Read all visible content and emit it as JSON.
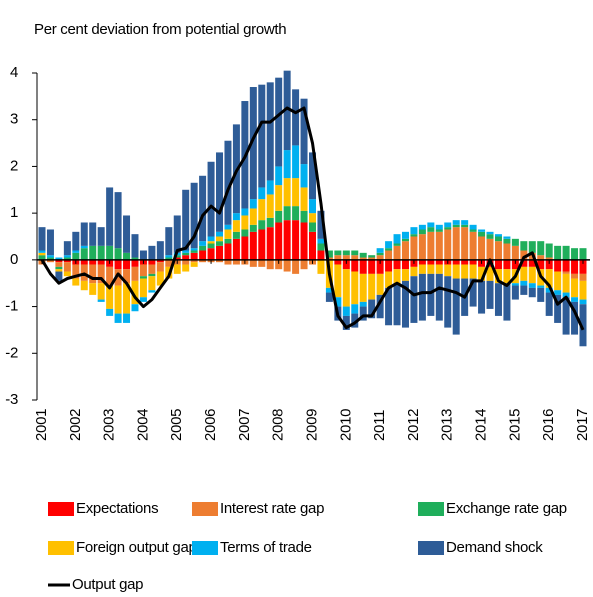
{
  "chart_data": {
    "type": "bar",
    "stacked": true,
    "title": "Per cent deviation from potential growth",
    "categories": [
      "2001",
      null,
      null,
      null,
      "2002",
      null,
      null,
      null,
      "2003",
      null,
      null,
      null,
      "2004",
      null,
      null,
      null,
      "2005",
      null,
      null,
      null,
      "2006",
      null,
      null,
      null,
      "2007",
      null,
      null,
      null,
      "2008",
      null,
      null,
      null,
      "2009",
      null,
      null,
      null,
      "2010",
      null,
      null,
      null,
      "2011",
      null,
      null,
      null,
      "2012",
      null,
      null,
      null,
      "2013",
      null,
      null,
      null,
      "2014",
      null,
      null,
      null,
      "2015",
      null,
      null,
      null,
      "2016",
      null,
      null,
      null,
      "2017"
    ],
    "ylim": [
      -3,
      4
    ],
    "yticks": [
      -3,
      -2,
      -1,
      0,
      1,
      2,
      3,
      4
    ],
    "grid": false,
    "series": [
      {
        "name": "Expectations",
        "color": "#ff0000",
        "values": [
          0,
          0,
          -0.05,
          -0.05,
          -0.1,
          -0.1,
          -0.1,
          -0.1,
          -0.15,
          -0.2,
          -0.2,
          -0.15,
          -0.1,
          -0.1,
          -0.05,
          0,
          0.05,
          0.1,
          0.15,
          0.2,
          0.25,
          0.3,
          0.35,
          0.45,
          0.5,
          0.6,
          0.65,
          0.7,
          0.8,
          0.85,
          0.85,
          0.8,
          0.6,
          0.2,
          0,
          -0.1,
          -0.2,
          -0.25,
          -0.3,
          -0.3,
          -0.3,
          -0.25,
          -0.2,
          -0.2,
          -0.15,
          -0.1,
          -0.1,
          -0.1,
          -0.1,
          -0.1,
          -0.1,
          -0.1,
          -0.15,
          -0.15,
          -0.2,
          -0.2,
          -0.2,
          -0.15,
          -0.15,
          -0.2,
          -0.2,
          -0.25,
          -0.25,
          -0.3,
          -0.3
        ]
      },
      {
        "name": "Interest rate gap",
        "color": "#ed7d31",
        "values": [
          -0.1,
          -0.05,
          -0.1,
          -0.2,
          -0.3,
          -0.35,
          -0.4,
          -0.4,
          -0.4,
          -0.35,
          -0.3,
          -0.3,
          -0.25,
          -0.2,
          -0.2,
          -0.15,
          -0.1,
          -0.1,
          -0.05,
          -0.05,
          -0.05,
          -0.05,
          -0.1,
          -0.1,
          -0.1,
          -0.15,
          -0.15,
          -0.2,
          -0.2,
          -0.25,
          -0.3,
          -0.2,
          -0.1,
          0,
          0.05,
          0.1,
          0.1,
          0.1,
          0.05,
          0.05,
          0.1,
          0.2,
          0.3,
          0.4,
          0.5,
          0.55,
          0.6,
          0.6,
          0.65,
          0.7,
          0.7,
          0.6,
          0.5,
          0.45,
          0.4,
          0.35,
          0.3,
          0.2,
          0.15,
          0.1,
          0.05,
          0,
          -0.05,
          -0.1,
          -0.15
        ]
      },
      {
        "name": "Exchange rate gap",
        "color": "#1fae5b",
        "values": [
          0.1,
          0.05,
          -0.05,
          0.05,
          0.15,
          0.25,
          0.3,
          0.3,
          0.3,
          0.25,
          0.15,
          0.05,
          -0.05,
          -0.05,
          0,
          0.05,
          0.05,
          0.05,
          0.05,
          0.1,
          0.1,
          0.1,
          0.1,
          0.15,
          0.15,
          0.15,
          0.2,
          0.2,
          0.25,
          0.3,
          0.3,
          0.25,
          0.2,
          0.15,
          0.15,
          0.1,
          0.1,
          0.1,
          0.1,
          0.05,
          0.05,
          0.05,
          0.05,
          0.05,
          0.05,
          0.1,
          0.1,
          0.05,
          0.05,
          0.05,
          0.05,
          0.05,
          0.1,
          0.1,
          0.1,
          0.1,
          0.15,
          0.2,
          0.25,
          0.3,
          0.3,
          0.3,
          0.3,
          0.25,
          0.25
        ]
      },
      {
        "name": "Foreign output gap",
        "color": "#ffc000",
        "values": [
          0.05,
          0,
          -0.05,
          -0.1,
          -0.15,
          -0.2,
          -0.25,
          -0.35,
          -0.5,
          -0.6,
          -0.65,
          -0.5,
          -0.4,
          -0.3,
          -0.3,
          -0.25,
          -0.2,
          -0.15,
          -0.1,
          0,
          0.05,
          0.1,
          0.2,
          0.25,
          0.3,
          0.35,
          0.45,
          0.5,
          0.55,
          0.6,
          0.6,
          0.5,
          0.2,
          -0.3,
          -0.6,
          -0.7,
          -0.8,
          -0.7,
          -0.6,
          -0.55,
          -0.45,
          -0.35,
          -0.3,
          -0.25,
          -0.2,
          -0.2,
          -0.2,
          -0.2,
          -0.25,
          -0.3,
          -0.3,
          -0.3,
          -0.3,
          -0.3,
          -0.3,
          -0.3,
          -0.3,
          -0.3,
          -0.35,
          -0.35,
          -0.4,
          -0.4,
          -0.4,
          -0.4,
          -0.4
        ]
      },
      {
        "name": "Terms of trade",
        "color": "#00b0f0",
        "values": [
          0.05,
          0.05,
          0.05,
          0.05,
          0.05,
          0.05,
          0,
          -0.05,
          -0.15,
          -0.2,
          -0.2,
          -0.15,
          -0.1,
          -0.05,
          0,
          0.05,
          0.05,
          0.05,
          0.05,
          0.1,
          0.1,
          0.1,
          0.1,
          0.15,
          0.15,
          0.2,
          0.25,
          0.3,
          0.4,
          0.6,
          0.7,
          0.5,
          0.3,
          0.1,
          -0.1,
          -0.2,
          -0.2,
          -0.2,
          -0.1,
          0,
          0.1,
          0.15,
          0.2,
          0.15,
          0.15,
          0.1,
          0.1,
          0.1,
          0.1,
          0.1,
          0.1,
          0.1,
          0.05,
          0.05,
          0.05,
          0.05,
          -0.05,
          -0.1,
          -0.1,
          -0.05,
          -0.1,
          -0.1,
          -0.1,
          -0.1,
          -0.1
        ]
      },
      {
        "name": "Demand shock",
        "color": "#2e5c97",
        "values": [
          0.5,
          0.55,
          -0.2,
          0.3,
          0.4,
          0.5,
          0.5,
          0.4,
          1.25,
          1.2,
          0.8,
          0.5,
          0.2,
          0.3,
          0.4,
          0.6,
          0.8,
          1.3,
          1.4,
          1.4,
          1.6,
          1.7,
          1.8,
          1.9,
          2.3,
          2.4,
          2.2,
          2.1,
          1.9,
          1.7,
          1.2,
          1.4,
          1.0,
          0.6,
          -0.2,
          -0.3,
          -0.3,
          -0.3,
          -0.3,
          -0.4,
          -0.5,
          -0.8,
          -0.9,
          -1.0,
          -1.0,
          -1.0,
          -0.9,
          -1.0,
          -1.1,
          -1.2,
          -0.8,
          -0.6,
          -0.7,
          -0.6,
          -0.7,
          -0.8,
          -0.3,
          -0.2,
          -0.2,
          -0.3,
          -0.5,
          -0.6,
          -0.8,
          -0.7,
          -0.9
        ]
      },
      {
        "name": "Output gap",
        "type": "line",
        "color": "#000000",
        "values": [
          0,
          -0.3,
          -0.5,
          -0.4,
          -0.35,
          -0.3,
          -0.4,
          -0.4,
          -0.6,
          -0.3,
          -0.5,
          -0.8,
          -1.0,
          -0.85,
          -0.6,
          -0.35,
          0.2,
          0.25,
          0.5,
          0.95,
          1.15,
          1.0,
          1.5,
          1.9,
          2.2,
          2.6,
          2.95,
          2.95,
          3.1,
          3.25,
          3.15,
          3.25,
          2.5,
          1.2,
          -0.3,
          -1.2,
          -1.45,
          -1.35,
          -1.2,
          -1.2,
          -0.9,
          -0.6,
          -0.5,
          -0.6,
          -0.75,
          -0.7,
          -0.7,
          -0.6,
          -0.65,
          -0.7,
          -0.8,
          -0.45,
          -0.45,
          0,
          -0.45,
          -0.55,
          -0.35,
          0.05,
          0.15,
          -0.35,
          -0.55,
          -0.95,
          -0.8,
          -1.1,
          -1.5
        ]
      }
    ]
  }
}
